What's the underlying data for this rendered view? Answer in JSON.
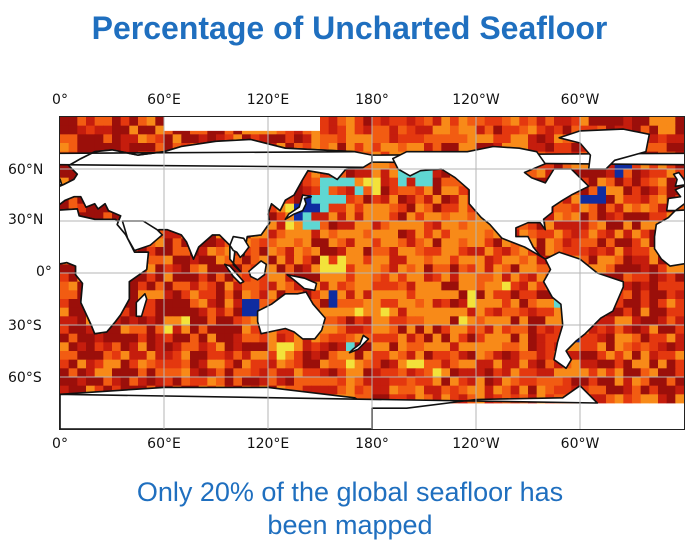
{
  "title": "Percentage of Uncharted Seafloor",
  "caption_line1": "Only 20% of the global seafloor has",
  "caption_line2": "been mapped",
  "colors": {
    "title": "#1f6fbf",
    "caption": "#1f6fbf",
    "land": "#ffffff",
    "coast": "#111111",
    "grid": "#b5b5b5",
    "deep_red": "#9b0f0a",
    "red": "#c51d0d",
    "bright_red": "#e4380f",
    "orange_red": "#f25c12",
    "orange": "#f88a18",
    "yellow": "#f3e23a",
    "cyan": "#5fd7d2",
    "blue": "#0f2ca0"
  },
  "map": {
    "projection": "equirectangular, centered on 180°",
    "lon_range": [
      0,
      360
    ],
    "lat_range": [
      -90,
      90
    ],
    "grid_lons": [
      0,
      60,
      120,
      180,
      240,
      300
    ],
    "grid_lats": [
      60,
      30,
      0,
      -30,
      -60
    ],
    "x_ticks": [
      "0°",
      "60°E",
      "120°E",
      "180°",
      "120°W",
      "60°W"
    ],
    "y_ticks": [
      "60°N",
      "30°N",
      "0°",
      "30°S",
      "60°S"
    ],
    "legend": "none",
    "variable": "percentage of uncharted seafloor per grid cell"
  }
}
